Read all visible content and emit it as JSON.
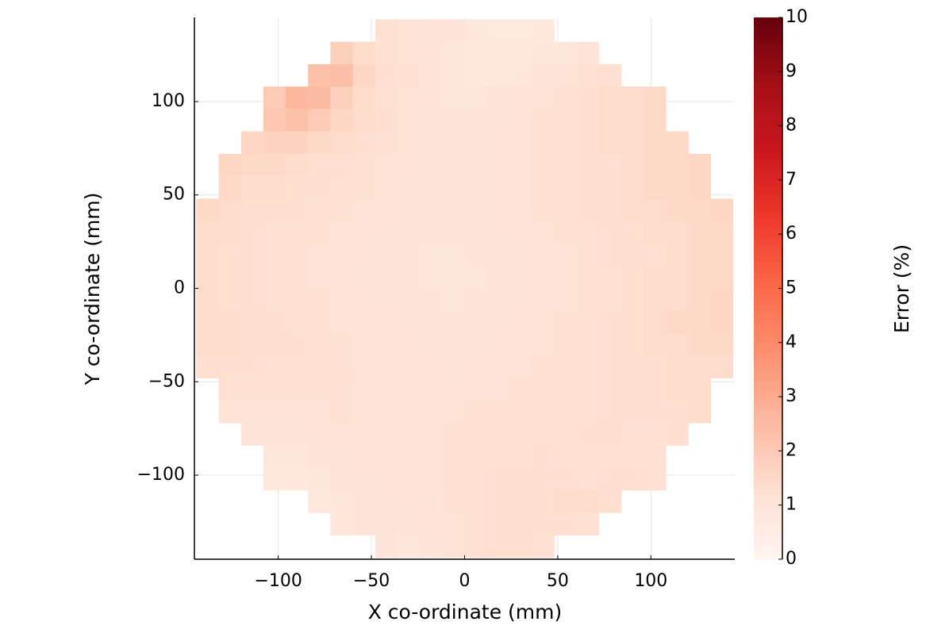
{
  "chart_data": {
    "type": "heatmap",
    "xlabel": "X co-ordinate (mm)",
    "ylabel": "Y co-ordinate (mm)",
    "colorbar_title": "Error (%)",
    "x": [
      -138,
      -126,
      -114,
      -102,
      -90,
      -78,
      -66,
      -54,
      -42,
      -30,
      -18,
      -6,
      6,
      18,
      30,
      42,
      54,
      66,
      78,
      90,
      102,
      114,
      126,
      138
    ],
    "y": [
      138,
      126,
      114,
      102,
      90,
      78,
      66,
      54,
      42,
      30,
      18,
      6,
      -6,
      -18,
      -30,
      -42,
      -54,
      -66,
      -78,
      -90,
      -102,
      -114,
      -126,
      -138
    ],
    "z": [
      [
        null,
        null,
        null,
        null,
        null,
        null,
        null,
        null,
        1.2,
        1.1,
        1.0,
        1.0,
        0.8,
        0.7,
        0.7,
        0.8,
        null,
        null,
        null,
        null,
        null,
        null,
        null,
        null
      ],
      [
        null,
        null,
        null,
        null,
        null,
        null,
        1.8,
        1.4,
        1.2,
        1.1,
        1.0,
        0.9,
        0.8,
        0.8,
        0.8,
        0.9,
        0.9,
        1.0,
        null,
        null,
        null,
        null,
        null,
        null
      ],
      [
        null,
        null,
        null,
        null,
        null,
        2.3,
        2.4,
        1.6,
        1.3,
        1.2,
        1.1,
        0.9,
        0.8,
        0.8,
        0.9,
        1.0,
        1.1,
        1.2,
        1.3,
        null,
        null,
        null,
        null,
        null
      ],
      [
        null,
        null,
        null,
        2.0,
        2.6,
        2.5,
        1.8,
        1.4,
        1.2,
        1.1,
        1.0,
        0.9,
        0.9,
        1.0,
        1.1,
        1.1,
        1.2,
        1.3,
        1.4,
        1.4,
        1.5,
        null,
        null,
        null
      ],
      [
        null,
        null,
        null,
        2.1,
        2.3,
        2.0,
        1.6,
        1.4,
        1.3,
        1.1,
        1.0,
        1.0,
        1.0,
        1.0,
        1.1,
        1.2,
        1.2,
        1.3,
        1.4,
        1.4,
        1.5,
        null,
        null,
        null
      ],
      [
        null,
        null,
        1.6,
        1.7,
        1.7,
        1.5,
        1.4,
        1.3,
        1.2,
        1.1,
        1.0,
        1.0,
        1.0,
        1.1,
        1.1,
        1.2,
        1.2,
        1.3,
        1.4,
        1.4,
        1.5,
        1.5,
        null,
        null
      ],
      [
        null,
        1.6,
        1.5,
        1.5,
        1.4,
        1.3,
        1.3,
        1.2,
        1.1,
        1.1,
        1.0,
        1.0,
        1.0,
        1.1,
        1.1,
        1.2,
        1.2,
        1.3,
        1.3,
        1.4,
        1.5,
        1.5,
        1.6,
        null
      ],
      [
        null,
        1.5,
        1.4,
        1.4,
        1.3,
        1.3,
        1.2,
        1.2,
        1.1,
        1.0,
        1.0,
        1.0,
        1.0,
        1.1,
        1.1,
        1.2,
        1.2,
        1.3,
        1.3,
        1.4,
        1.5,
        1.5,
        1.6,
        null
      ],
      [
        1.5,
        1.4,
        1.3,
        1.3,
        1.3,
        1.2,
        1.2,
        1.1,
        1.1,
        1.0,
        1.0,
        1.0,
        1.0,
        1.1,
        1.1,
        1.2,
        1.2,
        1.3,
        1.3,
        1.4,
        1.4,
        1.5,
        1.5,
        1.6
      ],
      [
        1.4,
        1.4,
        1.3,
        1.2,
        1.2,
        1.2,
        1.1,
        1.1,
        1.0,
        1.0,
        1.0,
        1.0,
        1.0,
        1.0,
        1.1,
        1.1,
        1.2,
        1.2,
        1.3,
        1.3,
        1.4,
        1.4,
        1.5,
        1.5
      ],
      [
        1.4,
        1.3,
        1.3,
        1.2,
        1.2,
        1.1,
        1.1,
        1.1,
        1.0,
        1.0,
        0.9,
        0.9,
        1.0,
        1.0,
        1.0,
        1.1,
        1.1,
        1.2,
        1.3,
        1.3,
        1.3,
        1.4,
        1.5,
        1.5
      ],
      [
        1.4,
        1.3,
        1.3,
        1.2,
        1.2,
        1.1,
        1.1,
        1.0,
        1.0,
        1.0,
        0.9,
        0.9,
        0.9,
        1.0,
        1.0,
        1.1,
        1.1,
        1.2,
        1.2,
        1.3,
        1.4,
        1.4,
        1.5,
        1.5
      ],
      [
        1.4,
        1.3,
        1.3,
        1.2,
        1.2,
        1.2,
        1.1,
        1.1,
        1.0,
        1.0,
        1.0,
        0.9,
        1.0,
        1.0,
        1.0,
        1.1,
        1.1,
        1.2,
        1.2,
        1.3,
        1.4,
        1.4,
        1.5,
        1.6
      ],
      [
        1.4,
        1.4,
        1.3,
        1.3,
        1.2,
        1.2,
        1.1,
        1.1,
        1.1,
        1.0,
        1.0,
        1.0,
        1.0,
        1.0,
        1.1,
        1.1,
        1.2,
        1.2,
        1.3,
        1.3,
        1.4,
        1.5,
        1.5,
        1.6
      ],
      [
        1.4,
        1.4,
        1.3,
        1.3,
        1.3,
        1.2,
        1.2,
        1.1,
        1.1,
        1.1,
        1.0,
        1.0,
        1.0,
        1.1,
        1.1,
        1.1,
        1.2,
        1.2,
        1.3,
        1.3,
        1.4,
        1.4,
        1.5,
        1.5
      ],
      [
        1.3,
        1.3,
        1.3,
        1.2,
        1.2,
        1.2,
        1.2,
        1.1,
        1.1,
        1.1,
        1.1,
        1.0,
        1.1,
        1.1,
        1.1,
        1.2,
        1.2,
        1.2,
        1.3,
        1.3,
        1.3,
        1.4,
        1.4,
        1.4
      ],
      [
        null,
        1.2,
        1.2,
        1.2,
        1.2,
        1.2,
        1.2,
        1.1,
        1.1,
        1.1,
        1.1,
        1.1,
        1.1,
        1.1,
        1.2,
        1.2,
        1.2,
        1.2,
        1.3,
        1.3,
        1.3,
        1.4,
        1.4,
        null
      ],
      [
        null,
        1.1,
        1.1,
        1.1,
        1.1,
        1.1,
        1.2,
        1.1,
        1.1,
        1.1,
        1.1,
        1.1,
        1.2,
        1.2,
        1.2,
        1.2,
        1.2,
        1.2,
        1.3,
        1.3,
        1.3,
        1.3,
        1.4,
        null
      ],
      [
        null,
        null,
        1.0,
        1.0,
        1.0,
        1.1,
        1.1,
        1.1,
        1.1,
        1.1,
        1.1,
        1.2,
        1.2,
        1.2,
        1.2,
        1.2,
        1.2,
        1.3,
        1.3,
        1.2,
        1.2,
        1.3,
        null,
        null
      ],
      [
        null,
        null,
        null,
        0.9,
        0.9,
        1.0,
        1.0,
        1.1,
        1.1,
        1.1,
        1.1,
        1.2,
        1.2,
        1.2,
        1.2,
        1.3,
        1.2,
        1.2,
        1.2,
        1.2,
        1.2,
        null,
        null,
        null
      ],
      [
        null,
        null,
        null,
        0.8,
        0.8,
        0.9,
        1.0,
        1.0,
        1.1,
        1.1,
        1.1,
        1.2,
        1.2,
        1.3,
        1.3,
        1.3,
        1.3,
        1.2,
        1.3,
        1.3,
        1.2,
        null,
        null,
        null
      ],
      [
        null,
        null,
        null,
        null,
        null,
        0.8,
        0.9,
        1.0,
        1.0,
        1.1,
        1.0,
        1.2,
        1.2,
        1.3,
        1.3,
        1.3,
        1.4,
        1.4,
        1.3,
        null,
        null,
        null,
        null,
        null
      ],
      [
        null,
        null,
        null,
        null,
        null,
        null,
        0.9,
        1.0,
        1.0,
        1.0,
        1.1,
        1.1,
        1.2,
        1.3,
        1.3,
        1.3,
        1.3,
        1.2,
        null,
        null,
        null,
        null,
        null,
        null
      ],
      [
        null,
        null,
        null,
        null,
        null,
        null,
        null,
        null,
        1.0,
        0.9,
        1.0,
        1.1,
        1.2,
        1.3,
        1.3,
        1.2,
        null,
        null,
        null,
        null,
        null,
        null,
        null,
        null
      ]
    ],
    "xlim": [
      -145,
      145
    ],
    "ylim": [
      -145,
      145
    ],
    "xticks": [
      {
        "value": -100,
        "label": "−100"
      },
      {
        "value": -50,
        "label": "−50"
      },
      0,
      50,
      100
    ],
    "yticks": [
      {
        "value": -100,
        "label": "−100"
      },
      {
        "value": -50,
        "label": "−50"
      },
      0,
      50,
      100
    ],
    "clim": [
      0,
      10
    ],
    "cticks": [
      0,
      1,
      2,
      3,
      4,
      5,
      6,
      7,
      8,
      9,
      10
    ],
    "colormap": [
      "#fff5f0",
      "#fee0d2",
      "#fcbba1",
      "#fc9272",
      "#fb6a4a",
      "#ef3b2c",
      "#cb181d",
      "#a50f15",
      "#67000d"
    ],
    "grid": true
  }
}
